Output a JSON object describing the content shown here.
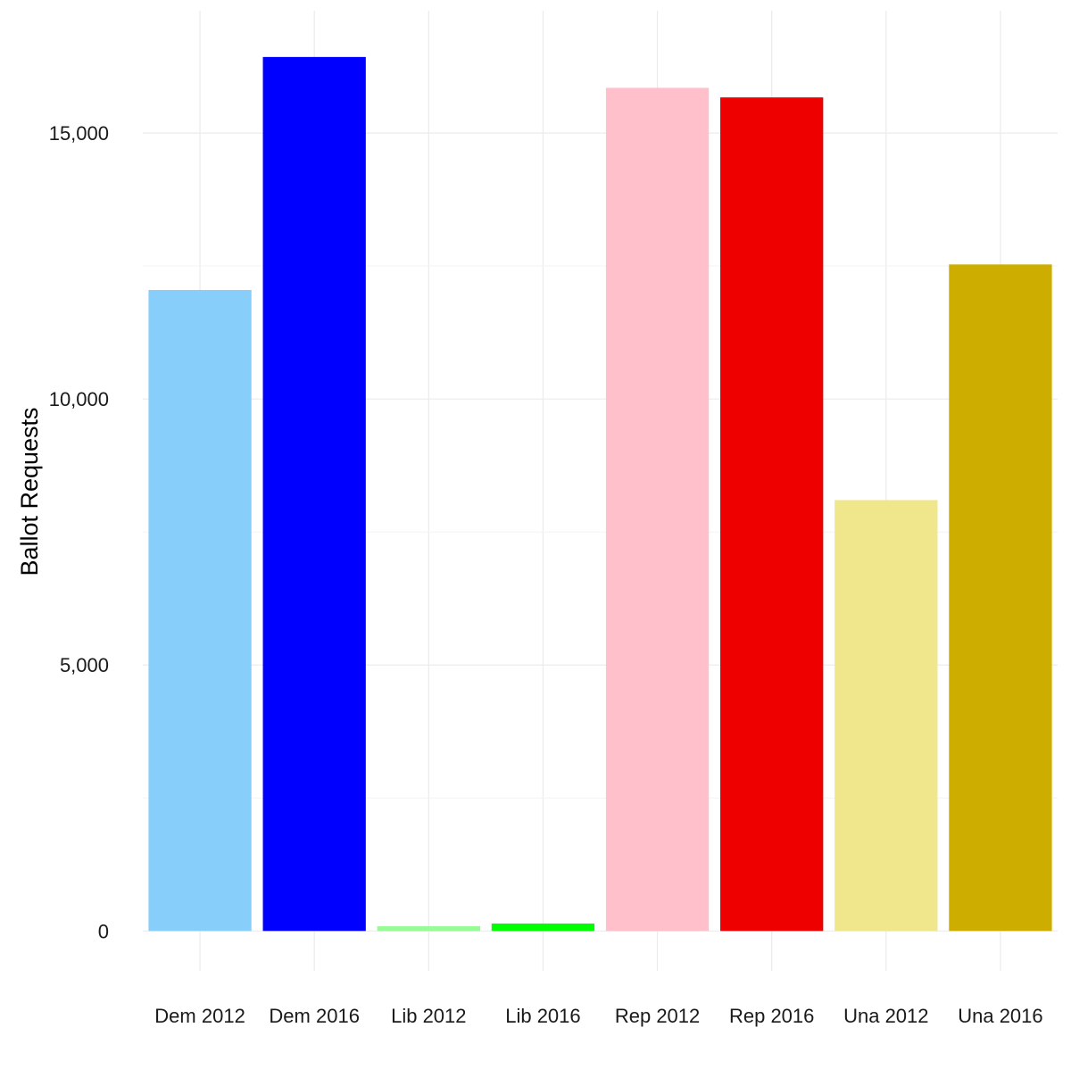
{
  "chart_data": {
    "type": "bar",
    "title": "",
    "xlabel": "",
    "ylabel": "Ballot Requests",
    "categories": [
      "Dem 2012",
      "Dem 2016",
      "Lib 2012",
      "Lib 2016",
      "Rep 2012",
      "Rep 2016",
      "Una 2012",
      "Una 2016"
    ],
    "values": [
      12050,
      16430,
      90,
      140,
      15850,
      15670,
      8100,
      12530
    ],
    "colors": [
      "#87CEFA",
      "#0000FF",
      "#98FB98",
      "#00FF00",
      "#FFC0CB",
      "#EE0000",
      "#F0E68C",
      "#CDAD00"
    ],
    "ylim": [
      -750,
      17300
    ],
    "yticks": [
      0,
      5000,
      10000,
      15000
    ],
    "ytick_labels": [
      "0",
      "5,000",
      "10,000",
      "15,000"
    ],
    "grid": true,
    "legend": "none"
  }
}
